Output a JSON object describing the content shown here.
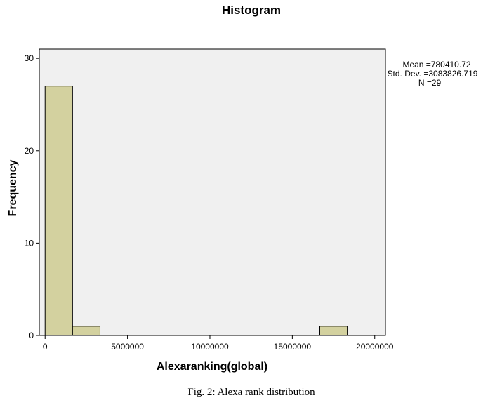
{
  "chart_data": {
    "type": "bar",
    "title": "Histogram",
    "xlabel": "Alexaranking(global)",
    "ylabel": "Frequency",
    "xlim": [
      -350000,
      20650000
    ],
    "ylim": [
      0,
      31
    ],
    "x_ticks": [
      0,
      5000000,
      10000000,
      15000000,
      20000000
    ],
    "x_tick_labels": [
      "0",
      "5000000",
      "10000000",
      "15000000",
      "20000000"
    ],
    "y_ticks": [
      0,
      10,
      20,
      30
    ],
    "y_tick_labels": [
      "0",
      "10",
      "20",
      "30"
    ],
    "bin_width": 1666667,
    "bins": [
      {
        "x0": 0,
        "x1": 1666667,
        "count": 27
      },
      {
        "x0": 1666667,
        "x1": 3333333,
        "count": 1
      },
      {
        "x0": 16666667,
        "x1": 18333333,
        "count": 1
      }
    ],
    "bar_color": "#d3d19f",
    "plot_background": "#f0f0f0",
    "grid": false,
    "legend": "none"
  },
  "stats": {
    "mean": "Mean =780410.72",
    "std_dev": "Std. Dev. =3083826.719",
    "n": "N =29"
  },
  "caption": "Fig. 2: Alexa rank distribution"
}
